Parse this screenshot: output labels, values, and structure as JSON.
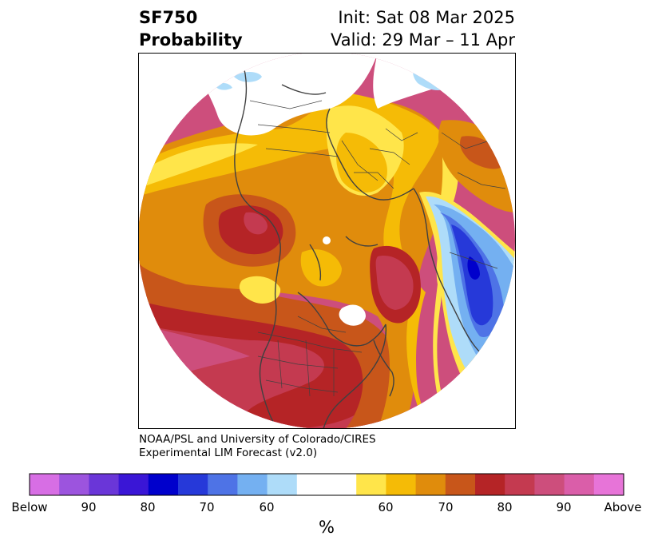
{
  "header": {
    "variable": "SF750",
    "product": "Probability",
    "init": "Init: Sat 08 Mar 2025",
    "valid": "Valid: 29 Mar – 11 Apr"
  },
  "credit": {
    "line1": "NOAA/PSL and University of Colorado/CIRES",
    "line2": "Experimental LIM Forecast (v2.0)"
  },
  "colorbar": {
    "unit": "%",
    "tick_labels": [
      "Below",
      "90",
      "80",
      "70",
      "60",
      "60",
      "70",
      "80",
      "90",
      "Above"
    ],
    "colors": [
      "#d76ee4",
      "#9c54de",
      "#6a36d8",
      "#3a16d6",
      "#0000cc",
      "#2639d9",
      "#4e73e6",
      "#74b0f1",
      "#aedcf9",
      "#ffffff",
      "#ffffff",
      "#ffe54a",
      "#f5bb06",
      "#e08c0c",
      "#c8561a",
      "#b52426",
      "#c43a50",
      "#cd4e7c",
      "#da5ea9",
      "#e774d8"
    ]
  },
  "map": {
    "projection": "north-polar-stereographic",
    "colors": {
      "light_yellow": "#ffe54a",
      "yellow": "#f5bb06",
      "orange": "#e08c0c",
      "dark_orange": "#c8561a",
      "red": "#b52426",
      "crimson": "#c43a50",
      "pink": "#cd4e7c",
      "light_blue": "#aedcf9",
      "sky_blue": "#74b0f1",
      "blue": "#4e73e6",
      "dark_blue": "#2639d9",
      "navy": "#0000cc"
    }
  }
}
